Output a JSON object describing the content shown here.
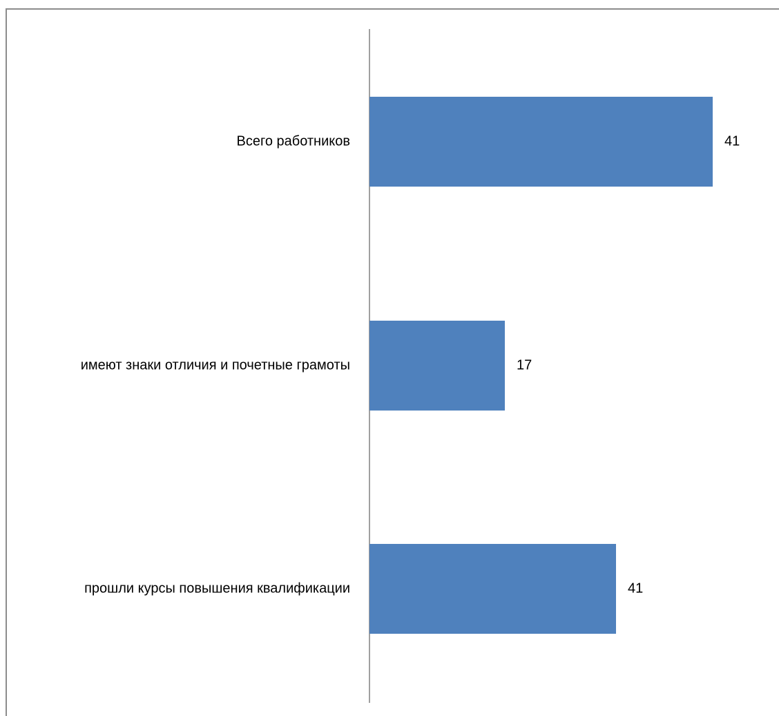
{
  "chart_data": {
    "type": "bar",
    "orientation": "horizontal",
    "categories": [
      "Всего работников",
      "имеют знаки отличия и почетные грамоты",
      "прошли курсы повышения квалификации"
    ],
    "values": [
      41,
      17,
      41
    ],
    "data_labels": [
      "41",
      "17",
      "41"
    ],
    "title": "",
    "xlabel": "",
    "ylabel": "",
    "grid": false,
    "legend": "none",
    "colors": {
      "bar": "#4f81bd",
      "axis": "#808080",
      "frame": "#8c8c8c"
    }
  }
}
